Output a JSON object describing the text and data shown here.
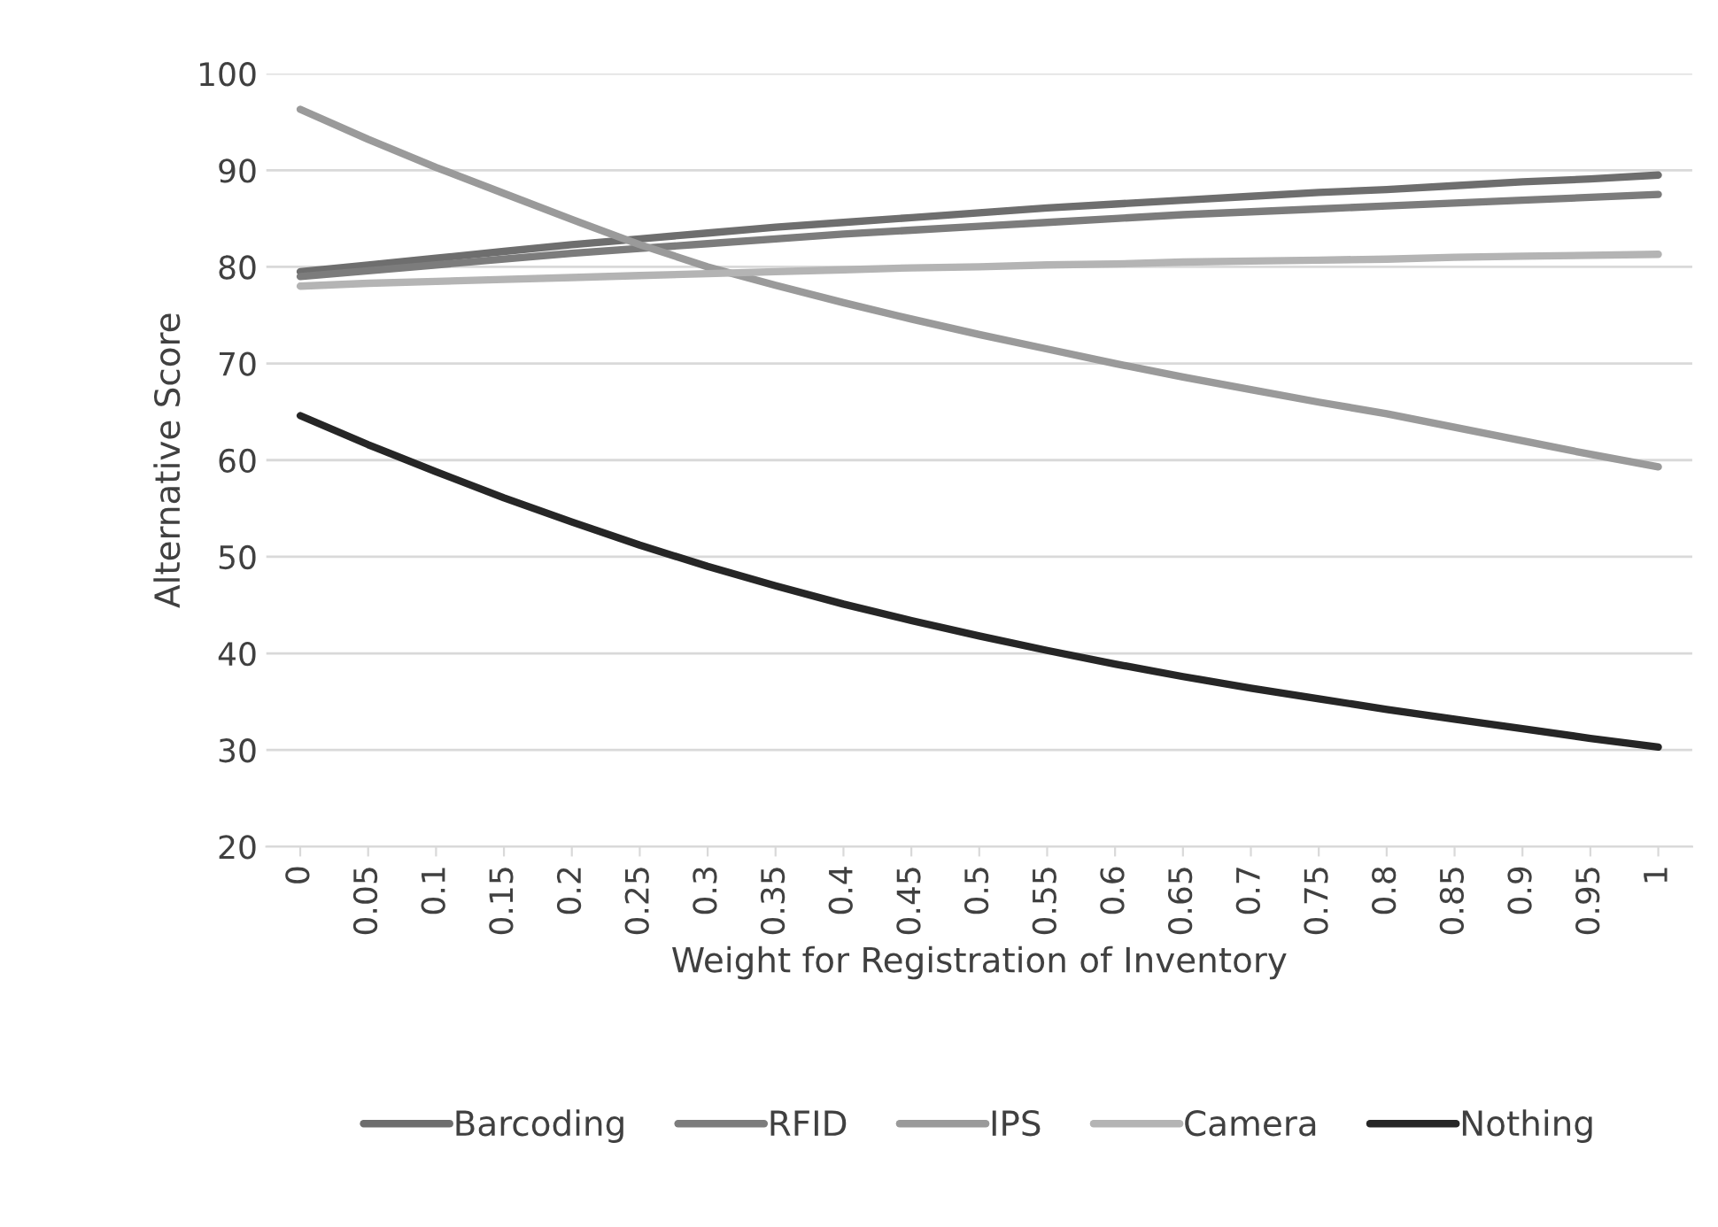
{
  "chart_data": {
    "type": "line",
    "xlabel": "Weight for Registration of Inventory",
    "ylabel": "Alternative Score",
    "categories": [
      "0",
      "0.05",
      "0.1",
      "0.15",
      "0.2",
      "0.25",
      "0.3",
      "0.35",
      "0.4",
      "0.45",
      "0.5",
      "0.55",
      "0.6",
      "0.65",
      "0.7",
      "0.75",
      "0.8",
      "0.85",
      "0.9",
      "0.95",
      "1"
    ],
    "series": [
      {
        "name": "Barcoding",
        "color": "#6e6e6e",
        "values": [
          79.5,
          80.2,
          80.9,
          81.6,
          82.3,
          82.9,
          83.5,
          84.1,
          84.6,
          85.1,
          85.6,
          86.1,
          86.5,
          86.9,
          87.3,
          87.7,
          88.0,
          88.4,
          88.8,
          89.1,
          89.5
        ]
      },
      {
        "name": "RFID",
        "color": "#7c7c7c",
        "values": [
          79.0,
          79.6,
          80.2,
          80.8,
          81.4,
          81.9,
          82.4,
          82.9,
          83.4,
          83.8,
          84.2,
          84.6,
          85.0,
          85.4,
          85.7,
          86.0,
          86.3,
          86.6,
          86.9,
          87.2,
          87.5
        ]
      },
      {
        "name": "IPS",
        "color": "#9a9a9a",
        "values": [
          96.3,
          93.2,
          90.3,
          87.6,
          84.9,
          82.3,
          80.0,
          78.1,
          76.3,
          74.6,
          73.0,
          71.5,
          70.0,
          68.6,
          67.3,
          66.0,
          64.8,
          63.4,
          62.0,
          60.6,
          59.3
        ]
      },
      {
        "name": "Camera",
        "color": "#b4b4b4",
        "values": [
          78.0,
          78.3,
          78.5,
          78.7,
          78.9,
          79.1,
          79.3,
          79.5,
          79.7,
          79.9,
          80.0,
          80.2,
          80.3,
          80.5,
          80.6,
          80.7,
          80.8,
          81.0,
          81.1,
          81.2,
          81.3
        ]
      },
      {
        "name": "Nothing",
        "color": "#262626",
        "values": [
          64.6,
          61.6,
          58.8,
          56.1,
          53.6,
          51.2,
          49.0,
          47.0,
          45.1,
          43.4,
          41.8,
          40.3,
          38.9,
          37.6,
          36.4,
          35.3,
          34.2,
          33.2,
          32.2,
          31.2,
          30.3
        ]
      }
    ],
    "ylim": [
      20,
      100
    ],
    "yticks": [
      20,
      30,
      40,
      50,
      60,
      70,
      80,
      90,
      100
    ],
    "grid": "y",
    "legend": "bottom",
    "marker": "none",
    "line_style": "solid"
  }
}
